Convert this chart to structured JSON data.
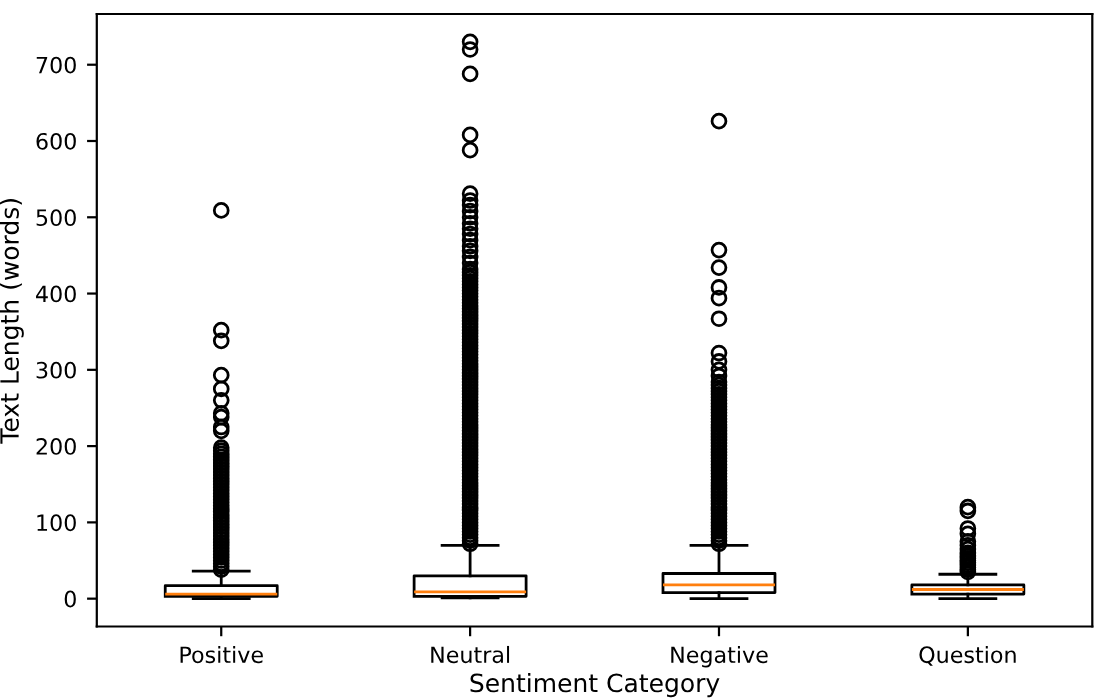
{
  "chart_data": {
    "type": "box",
    "xlabel": "Sentiment Category",
    "ylabel": "Text Length (words)",
    "categories": [
      "Positive",
      "Neutral",
      "Negative",
      "Question"
    ],
    "ylim": [
      -36.5,
      766.5
    ],
    "yticks": [
      0,
      100,
      200,
      300,
      400,
      500,
      600,
      700
    ],
    "grid": false,
    "marker": "circle",
    "color": "#000000",
    "boxes": [
      {
        "low": 0,
        "q1": 3,
        "median": 6,
        "q3": 17,
        "high": 36,
        "outliers": [
          38,
          42,
          46,
          50,
          54,
          58,
          62,
          66,
          70,
          74,
          78,
          82,
          86,
          90,
          94,
          98,
          102,
          106,
          110,
          114,
          118,
          122,
          126,
          130,
          134,
          138,
          142,
          146,
          150,
          154,
          158,
          162,
          166,
          170,
          174,
          178,
          182,
          186,
          190,
          194,
          198,
          220,
          225,
          238,
          243,
          260,
          275,
          293,
          338,
          352,
          509
        ]
      },
      {
        "low": 1,
        "q1": 3,
        "median": 9,
        "q3": 30,
        "high": 70,
        "outliers": [
          72,
          76,
          80,
          84,
          88,
          92,
          96,
          100,
          104,
          108,
          112,
          116,
          120,
          124,
          128,
          132,
          136,
          140,
          144,
          148,
          152,
          156,
          160,
          164,
          168,
          172,
          176,
          180,
          184,
          188,
          192,
          196,
          200,
          204,
          208,
          212,
          216,
          220,
          224,
          228,
          232,
          236,
          240,
          244,
          248,
          252,
          256,
          260,
          264,
          268,
          272,
          276,
          280,
          284,
          288,
          292,
          296,
          300,
          304,
          308,
          312,
          316,
          320,
          324,
          328,
          332,
          336,
          340,
          344,
          348,
          352,
          356,
          360,
          364,
          368,
          372,
          376,
          380,
          384,
          388,
          392,
          396,
          400,
          404,
          408,
          412,
          416,
          420,
          424,
          428,
          432,
          440,
          448,
          456,
          462,
          470,
          478,
          485,
          492,
          500,
          508,
          516,
          522,
          531,
          588,
          608,
          688,
          720,
          730
        ]
      },
      {
        "low": 0,
        "q1": 8,
        "median": 18,
        "q3": 33,
        "high": 70,
        "outliers": [
          72,
          76,
          80,
          84,
          88,
          92,
          96,
          100,
          104,
          108,
          112,
          116,
          120,
          124,
          128,
          132,
          136,
          140,
          144,
          148,
          152,
          156,
          160,
          164,
          168,
          172,
          176,
          180,
          184,
          188,
          192,
          196,
          200,
          204,
          208,
          212,
          216,
          220,
          224,
          228,
          232,
          236,
          240,
          244,
          248,
          252,
          256,
          260,
          264,
          268,
          272,
          276,
          280,
          284,
          292,
          300,
          311,
          322,
          367,
          394,
          408,
          434,
          457,
          626
        ]
      },
      {
        "low": 0,
        "q1": 6,
        "median": 12,
        "q3": 18,
        "high": 32,
        "outliers": [
          35,
          38,
          41,
          44,
          47,
          50,
          53,
          56,
          60,
          65,
          70,
          75,
          85,
          92,
          115,
          120
        ]
      }
    ]
  }
}
